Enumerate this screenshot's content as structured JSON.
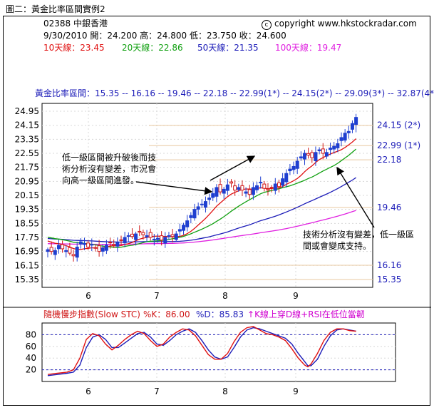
{
  "figure_caption": "圖二：黃金比率區間實例2",
  "header": {
    "code_name": "02388  中銀香港",
    "copyright": "copyright www.hkstockradar.com",
    "ohlc": "9/30/2010  開：24.200  高：24.800  低：23.750  收：24.600",
    "ma10": "10天線：23.45",
    "ma20": "20天線：22.86",
    "ma50": "50天線：21.35",
    "ma100": "100天線：19.47"
  },
  "fib_title": "黃金比率區間：15.35 -- 16.16 -- 19.46 -- 22.18 -- 22.99(1*) -- 24.15(2*) -- 29.09(3*) -- 32.87(4*) --",
  "annotations": {
    "upper_left_line1": "低一級區間被升破後而技",
    "upper_left_line2": "術分析沒有變差，市況會",
    "upper_left_line3": "向高一級區間進發。",
    "lower_right_line1": "技術分析沒有變差，低一級區",
    "lower_right_line2": "間或會變成支持。"
  },
  "stc_header": {
    "title": "隨機慢步指數(Slow STC)",
    "k": "%K：86.00",
    "d": "%D：85.83",
    "note": "K線上穿D線+RSI在低位當韌"
  },
  "colors": {
    "up_candle": "#1f3fd0",
    "down_candle": "#d01818",
    "ma10": "#e01010",
    "ma20": "#10a010",
    "ma50": "#1c1cb8",
    "ma100": "#e020e0",
    "fib_label": "#1c1cb8",
    "fib_line": "#e8c8a0",
    "stc_k": "#e01010",
    "stc_d": "#1c1cb8",
    "note": "#d000d0"
  },
  "chart_data": [
    {
      "type": "candlestick",
      "title": "02388 中銀香港",
      "x_ticks": [
        "6",
        "7",
        "8",
        "9"
      ],
      "y_ticks": [
        "24.95",
        "24.15",
        "23.35",
        "22.55",
        "21.75",
        "20.95",
        "20.15",
        "19.35",
        "18.55",
        "17.75",
        "16.95",
        "16.15",
        "15.35"
      ],
      "ylim": [
        14.9,
        25.4
      ],
      "grid": true,
      "fib_levels": [
        {
          "value": 15.35,
          "label": "15.35"
        },
        {
          "value": 16.16,
          "label": "16.16"
        },
        {
          "value": 19.46,
          "label": "19.46"
        },
        {
          "value": 22.18,
          "label": "22.18"
        },
        {
          "value": 22.99,
          "label": "22.99 (1*)"
        },
        {
          "value": 24.15,
          "label": "24.15 (2*)"
        }
      ],
      "last_bar": {
        "date": "9/30/2010",
        "open": 24.2,
        "high": 24.8,
        "low": 23.75,
        "close": 24.6
      },
      "closes": [
        17.05,
        16.95,
        17.0,
        17.3,
        17.1,
        17.0,
        16.85,
        16.7,
        17.2,
        17.5,
        17.4,
        17.2,
        17.35,
        17.15,
        16.95,
        17.15,
        17.3,
        17.45,
        17.3,
        17.45,
        17.6,
        17.75,
        17.85,
        17.8,
        17.95,
        18.05,
        17.9,
        17.85,
        17.75,
        17.65,
        17.7,
        17.6,
        17.75,
        17.85,
        17.8,
        17.95,
        18.2,
        18.45,
        18.7,
        19.0,
        19.35,
        19.5,
        19.65,
        19.8,
        20.0,
        20.25,
        20.6,
        20.35,
        20.5,
        20.75,
        20.85,
        20.45,
        20.6,
        20.45,
        20.35,
        20.2,
        20.6,
        20.7,
        20.9,
        20.55,
        20.45,
        20.6,
        20.8,
        20.65,
        21.1,
        21.4,
        21.65,
        21.8,
        22.1,
        22.35,
        22.55,
        22.45,
        22.3,
        22.6,
        22.75,
        22.55,
        22.6,
        22.85,
        22.95,
        23.1,
        23.45,
        23.7,
        23.8,
        24.25,
        24.6
      ],
      "series": [
        {
          "name": "10天線",
          "last": 23.45
        },
        {
          "name": "20天線",
          "last": 22.86
        },
        {
          "name": "50天線",
          "last": 21.35
        },
        {
          "name": "100天線",
          "last": 19.47
        }
      ]
    },
    {
      "type": "line",
      "title": "隨機慢步指數(Slow STC)",
      "x_ticks": [
        "6",
        "7",
        "8",
        "9"
      ],
      "y_ticks": [
        "80",
        "60",
        "40",
        "20"
      ],
      "ylim": [
        0,
        100
      ],
      "reference_lines": [
        80,
        20
      ],
      "k_points": [
        [
          0,
          12
        ],
        [
          3,
          14
        ],
        [
          6,
          16
        ],
        [
          8,
          20
        ],
        [
          10,
          40
        ],
        [
          12,
          72
        ],
        [
          14,
          82
        ],
        [
          16,
          78
        ],
        [
          18,
          64
        ],
        [
          20,
          54
        ],
        [
          22,
          62
        ],
        [
          24,
          72
        ],
        [
          26,
          80
        ],
        [
          28,
          86
        ],
        [
          30,
          82
        ],
        [
          32,
          70
        ],
        [
          34,
          60
        ],
        [
          36,
          64
        ],
        [
          38,
          76
        ],
        [
          40,
          84
        ],
        [
          42,
          90
        ],
        [
          44,
          88
        ],
        [
          46,
          78
        ],
        [
          48,
          62
        ],
        [
          50,
          46
        ],
        [
          52,
          38
        ],
        [
          54,
          38
        ],
        [
          56,
          48
        ],
        [
          58,
          68
        ],
        [
          60,
          84
        ],
        [
          62,
          92
        ],
        [
          64,
          94
        ],
        [
          66,
          88
        ],
        [
          68,
          82
        ],
        [
          70,
          80
        ],
        [
          72,
          76
        ],
        [
          74,
          70
        ],
        [
          76,
          56
        ],
        [
          78,
          40
        ],
        [
          80,
          28
        ],
        [
          81,
          25
        ],
        [
          82,
          30
        ],
        [
          84,
          48
        ],
        [
          86,
          70
        ],
        [
          88,
          84
        ],
        [
          90,
          90
        ],
        [
          92,
          90
        ],
        [
          94,
          87
        ],
        [
          96,
          86
        ]
      ],
      "d_points": [
        [
          0,
          10
        ],
        [
          3,
          12
        ],
        [
          6,
          14
        ],
        [
          8,
          16
        ],
        [
          10,
          28
        ],
        [
          12,
          58
        ],
        [
          14,
          76
        ],
        [
          16,
          80
        ],
        [
          18,
          72
        ],
        [
          20,
          58
        ],
        [
          22,
          58
        ],
        [
          24,
          66
        ],
        [
          26,
          74
        ],
        [
          28,
          82
        ],
        [
          30,
          84
        ],
        [
          32,
          76
        ],
        [
          34,
          64
        ],
        [
          36,
          62
        ],
        [
          38,
          70
        ],
        [
          40,
          80
        ],
        [
          42,
          86
        ],
        [
          44,
          90
        ],
        [
          46,
          84
        ],
        [
          48,
          70
        ],
        [
          50,
          54
        ],
        [
          52,
          42
        ],
        [
          54,
          38
        ],
        [
          56,
          42
        ],
        [
          58,
          58
        ],
        [
          60,
          76
        ],
        [
          62,
          88
        ],
        [
          64,
          92
        ],
        [
          66,
          90
        ],
        [
          68,
          86
        ],
        [
          70,
          82
        ],
        [
          72,
          78
        ],
        [
          74,
          74
        ],
        [
          76,
          64
        ],
        [
          78,
          48
        ],
        [
          80,
          34
        ],
        [
          81,
          27
        ],
        [
          82,
          27
        ],
        [
          84,
          38
        ],
        [
          86,
          60
        ],
        [
          88,
          78
        ],
        [
          90,
          88
        ],
        [
          92,
          90
        ],
        [
          94,
          88
        ],
        [
          96,
          86
        ]
      ],
      "series": [
        {
          "name": "%K",
          "last": 86.0
        },
        {
          "name": "%D",
          "last": 85.83
        }
      ]
    }
  ]
}
